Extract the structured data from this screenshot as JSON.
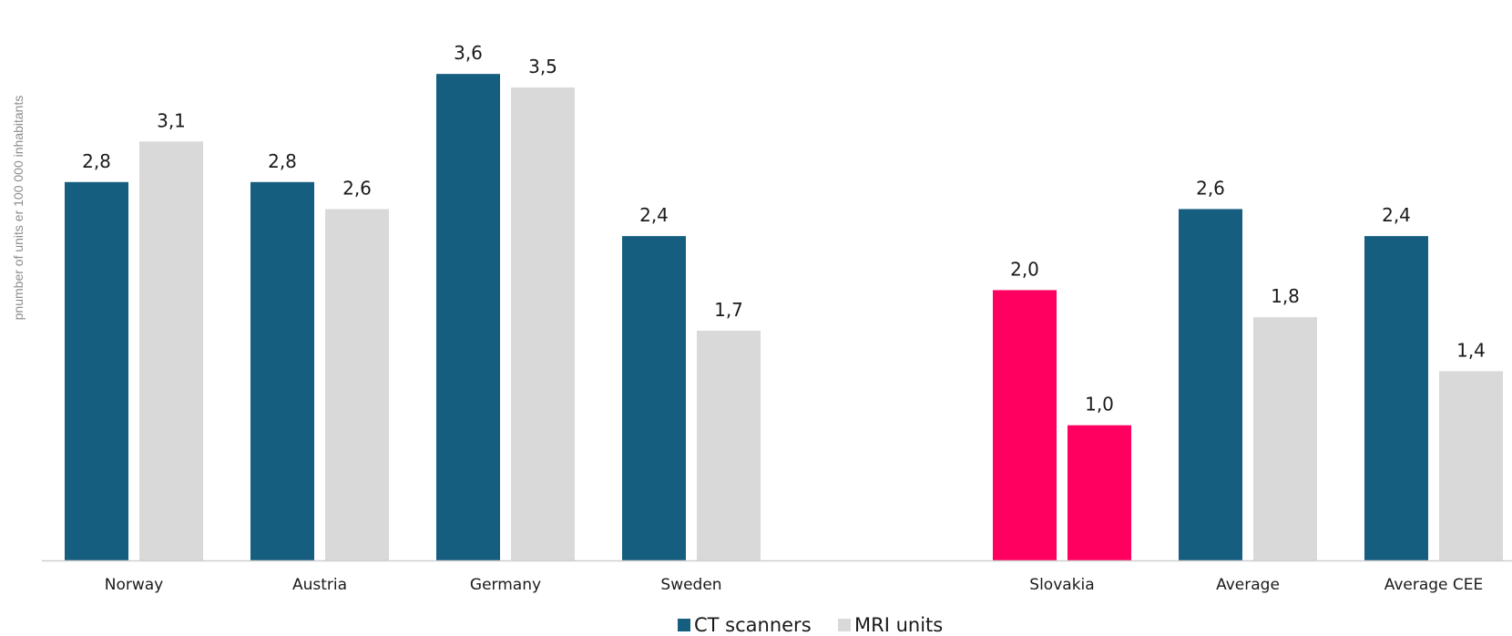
{
  "chart_data": {
    "type": "bar",
    "title": "",
    "xlabel": "",
    "ylabel": "pnumber of units er 100 000 inhabitants",
    "ylim": [
      0,
      3.8
    ],
    "grid": false,
    "legend_position": "bottom-center",
    "categories": [
      "Norway",
      "Austria",
      "Germany",
      "Sweden",
      "",
      "Slovakia",
      "Average",
      "Average CEE"
    ],
    "series": [
      {
        "name": "CT scanners",
        "color": "#165e80",
        "values": [
          2.8,
          2.8,
          3.6,
          2.4,
          null,
          2.0,
          2.6,
          2.4
        ],
        "labels": [
          "2,8",
          "2,8",
          "3,6",
          "2,4",
          "",
          "2,0",
          "2,6",
          "2,4"
        ]
      },
      {
        "name": "MRI units",
        "color": "#d9d9d9",
        "values": [
          3.1,
          2.6,
          3.5,
          1.7,
          null,
          1.0,
          1.8,
          1.4
        ],
        "labels": [
          "3,1",
          "2,6",
          "3,5",
          "1,7",
          "",
          "1,0",
          "1,8",
          "1,4"
        ]
      }
    ],
    "highlight": {
      "category": "Slovakia",
      "color": "#ff0060"
    }
  }
}
